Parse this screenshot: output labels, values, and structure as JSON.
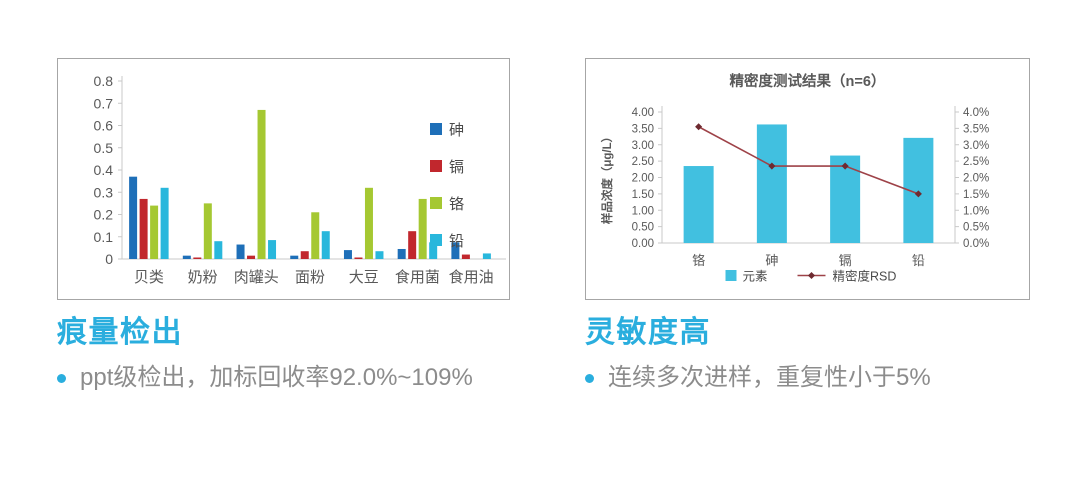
{
  "theme": {
    "background": "#ffffff",
    "heading_color": "#2aaede",
    "body_text_color": "#8c8c8c",
    "axis_text_color": "#595959",
    "legend_text_color": "#4a4a4a",
    "axis_line_color": "#c9c9c9",
    "box_border_color": "#a6a6a6",
    "line_marker_color": "#6e2a30"
  },
  "panels": [
    {
      "heading": "痕量检出",
      "bullet": "ppt级检出，加标回收率92.0%~109%"
    },
    {
      "heading": "灵敏度高",
      "bullet": "连续多次进样，重复性小于5%"
    }
  ],
  "chart_data": [
    {
      "type": "bar",
      "title": "",
      "categories": [
        "贝类",
        "奶粉",
        "肉罐头",
        "面粉",
        "大豆",
        "食用菌",
        "食用油"
      ],
      "series": [
        {
          "name": "砷",
          "color": "#1e6fb8",
          "values": [
            0.37,
            0.015,
            0.065,
            0.015,
            0.04,
            0.045,
            0.075
          ]
        },
        {
          "name": "镉",
          "color": "#c1272d",
          "values": [
            0.27,
            0.005,
            0.015,
            0.035,
            0.005,
            0.125,
            0.02
          ]
        },
        {
          "name": "铬",
          "color": "#a5c832",
          "values": [
            0.24,
            0.25,
            0.67,
            0.21,
            0.32,
            0.27,
            0
          ]
        },
        {
          "name": "铅",
          "color": "#29b7dc",
          "values": [
            0.32,
            0.08,
            0.085,
            0.125,
            0.035,
            0.075,
            0.025
          ]
        }
      ],
      "ylim": [
        0,
        0.8
      ],
      "yticks": [
        "0",
        "0.1",
        "0.2",
        "0.3",
        "0.4",
        "0.5",
        "0.6",
        "0.7",
        "0.8"
      ],
      "xlabel": "",
      "ylabel": "",
      "legend_position": "right",
      "grid": false
    },
    {
      "type": "combo",
      "title": "精密度测试结果（n=6）",
      "categories": [
        "铬",
        "砷",
        "镉",
        "铅"
      ],
      "bar_series": {
        "name": "元素",
        "color": "#41c0e0",
        "values": [
          2.35,
          3.62,
          2.67,
          3.21
        ],
        "axis": "left"
      },
      "line_series": {
        "name": "精密度RSD",
        "color": "#9e4248",
        "values": [
          3.55,
          2.35,
          2.35,
          1.5
        ],
        "unit": "%",
        "axis": "right"
      },
      "ylabel_left": "样品浓度（μg/L）",
      "ylim_left": [
        0,
        4
      ],
      "yticks_left": [
        "0.00",
        "0.50",
        "1.00",
        "1.50",
        "2.00",
        "2.50",
        "3.00",
        "3.50",
        "4.00"
      ],
      "ylim_right_percent": [
        0,
        4
      ],
      "yticks_right": [
        "0.0%",
        "0.5%",
        "1.0%",
        "1.5%",
        "2.0%",
        "2.5%",
        "3.0%",
        "3.5%",
        "4.0%"
      ],
      "legend_position": "bottom",
      "grid": false
    }
  ]
}
